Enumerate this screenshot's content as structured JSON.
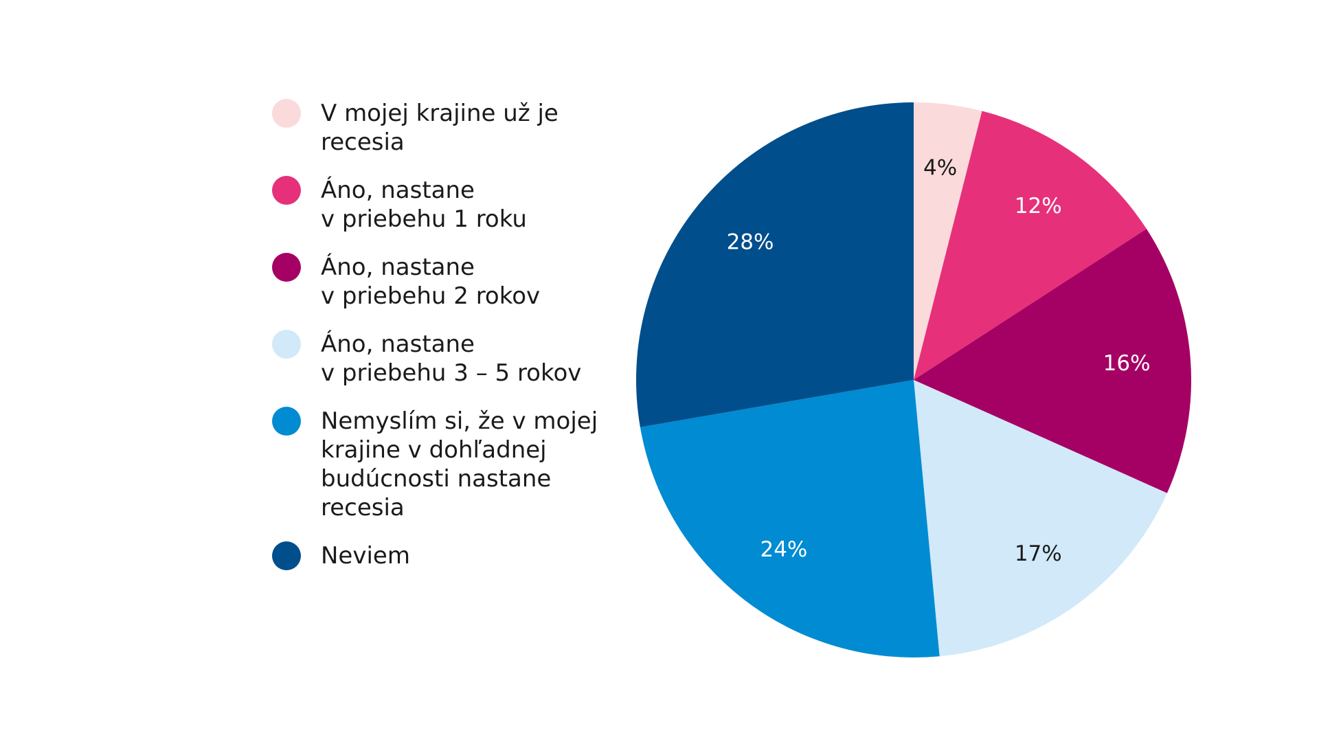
{
  "chart_data": {
    "type": "pie",
    "title": "",
    "start_angle_deg": 0,
    "direction": "clockwise",
    "slices": [
      {
        "label": "V mojej krajine už je recesia",
        "legend_lines": [
          "V mojej krajine už je",
          "recesia"
        ],
        "value": 4,
        "value_label": "4%",
        "color": "#fadadb",
        "label_color": "#1a1a1a"
      },
      {
        "label": "Áno, nastane v priebehu 1 roku",
        "legend_lines": [
          "Áno, nastane",
          "v priebehu 1 roku"
        ],
        "value": 12,
        "value_label": "12%",
        "color": "#e6317a",
        "label_color": "#ffffff"
      },
      {
        "label": "Áno, nastane v priebehu 2 rokov",
        "legend_lines": [
          "Áno, nastane",
          "v priebehu 2 rokov"
        ],
        "value": 16,
        "value_label": "16%",
        "color": "#a50064",
        "label_color": "#ffffff"
      },
      {
        "label": "Áno, nastane v priebehu 3 – 5 rokov",
        "legend_lines": [
          "Áno, nastane",
          "v priebehu 3 – 5 rokov"
        ],
        "value": 17,
        "value_label": "17%",
        "color": "#d1e9f8",
        "label_color": "#1a1a1a"
      },
      {
        "label": "Nemyslím si, že v mojej krajine v dohľadnej budúcnosti nastane recesia",
        "legend_lines": [
          "Nemyslím si, že v mojej",
          "krajine v dohľadnej",
          "budúcnosti nastane",
          "recesia"
        ],
        "value": 24,
        "value_label": "24%",
        "color": "#008bd2",
        "label_color": "#ffffff"
      },
      {
        "label": "Neviem",
        "legend_lines": [
          "Neviem"
        ],
        "value": 28,
        "value_label": "28%",
        "color": "#004e8c",
        "label_color": "#ffffff"
      }
    ],
    "legend_position": "left"
  }
}
